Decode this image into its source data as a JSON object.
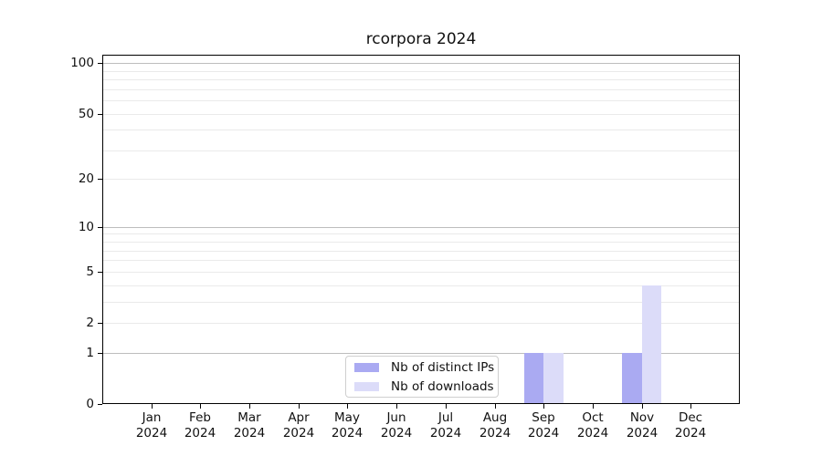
{
  "chart_data": {
    "type": "bar",
    "title": "rcorpora 2024",
    "xlabel": "",
    "ylabel": "",
    "categories": [
      "Jan 2024",
      "Feb 2024",
      "Mar 2024",
      "Apr 2024",
      "May 2024",
      "Jun 2024",
      "Jul 2024",
      "Aug 2024",
      "Sep 2024",
      "Oct 2024",
      "Nov 2024",
      "Dec 2024"
    ],
    "series": [
      {
        "name": "Nb of distinct IPs",
        "color": "#aaaaf2",
        "values": [
          0,
          0,
          0,
          0,
          0,
          0,
          0,
          0,
          1,
          0,
          1,
          0
        ]
      },
      {
        "name": "Nb of downloads",
        "color": "#dcdcf9",
        "values": [
          0,
          0,
          0,
          0,
          0,
          0,
          0,
          0,
          1,
          0,
          4,
          0
        ]
      }
    ],
    "yscale": "log1p",
    "ylim": [
      0,
      112
    ],
    "yticks": [
      0,
      1,
      2,
      5,
      10,
      20,
      50,
      100
    ],
    "gridlines_major": [
      1,
      10,
      100
    ],
    "gridlines_minor": [
      2,
      3,
      4,
      5,
      6,
      7,
      8,
      9,
      20,
      30,
      40,
      50,
      60,
      70,
      80,
      90
    ],
    "grid": true,
    "legend_position": "lower center inside",
    "colors": {
      "major_gridline": "#bdbdbd",
      "minor_gridline": "#eaeaea",
      "axis": "#000000",
      "text": "#111111",
      "background": "#ffffff"
    }
  }
}
